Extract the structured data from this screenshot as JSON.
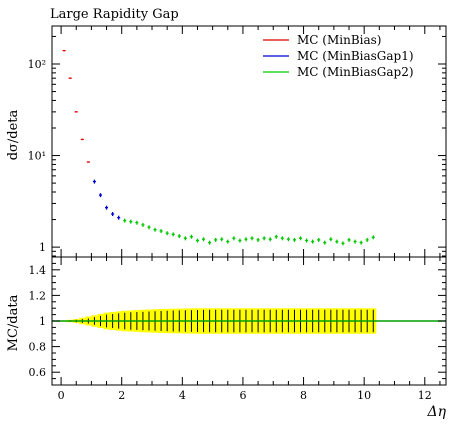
{
  "chart_data": {
    "type": "scatter",
    "title": "Large Rapidity Gap",
    "xlabel": "Δη",
    "xlim": [
      -0.3,
      12.7
    ],
    "xticks": [
      0,
      2,
      4,
      6,
      8,
      10,
      12
    ],
    "main_panel": {
      "ylabel": "dσ/deta",
      "yscale": "log",
      "ylim": [
        0.78,
        260
      ],
      "yticks": [
        {
          "value": 1,
          "label": "1"
        },
        {
          "value": 10,
          "label": "10¹"
        },
        {
          "value": 100,
          "label": "10²"
        }
      ],
      "grid": false
    },
    "ratio_panel": {
      "ylabel": "MC/data",
      "ylim": [
        0.5,
        1.5
      ],
      "yticks": [
        0.6,
        0.8,
        1,
        1.2,
        1.4
      ],
      "reference_line": 1,
      "band_color": "#ffff00"
    },
    "legend": {
      "placement": "top-right",
      "entries": [
        {
          "label": "MC (MinBias)",
          "color": "#e00000"
        },
        {
          "label": "MC (MinBiasGap1)",
          "color": "#0000d0"
        },
        {
          "label": "MC (MinBiasGap2)",
          "color": "#00c800"
        }
      ]
    },
    "bin_width": 0.2,
    "series": [
      {
        "name": "MC (MinBias)",
        "color": "#e00000",
        "x": [
          0.1,
          0.3,
          0.5,
          0.7,
          0.9
        ],
        "y": [
          140,
          70,
          30,
          15,
          8.5
        ]
      },
      {
        "name": "MC (MinBiasGap1)",
        "color": "#0000d0",
        "x": [
          1.1,
          1.3,
          1.5,
          1.7,
          1.9
        ],
        "y": [
          5.2,
          3.7,
          2.7,
          2.3,
          2.1
        ]
      },
      {
        "name": "MC (MinBiasGap2)",
        "color": "#00c800",
        "x": [
          2.1,
          2.3,
          2.5,
          2.7,
          2.9,
          3.1,
          3.3,
          3.5,
          3.7,
          3.9,
          4.1,
          4.3,
          4.5,
          4.7,
          4.9,
          5.1,
          5.3,
          5.5,
          5.7,
          5.9,
          6.1,
          6.3,
          6.5,
          6.7,
          6.9,
          7.1,
          7.3,
          7.5,
          7.7,
          7.9,
          8.1,
          8.3,
          8.5,
          8.7,
          8.9,
          9.1,
          9.3,
          9.5,
          9.7,
          9.9,
          10.1,
          10.3
        ],
        "y": [
          1.95,
          1.9,
          1.85,
          1.75,
          1.65,
          1.55,
          1.5,
          1.42,
          1.38,
          1.32,
          1.25,
          1.3,
          1.18,
          1.22,
          1.12,
          1.2,
          1.22,
          1.15,
          1.25,
          1.18,
          1.22,
          1.25,
          1.2,
          1.25,
          1.22,
          1.3,
          1.25,
          1.22,
          1.2,
          1.25,
          1.18,
          1.15,
          1.2,
          1.12,
          1.22,
          1.15,
          1.1,
          1.2,
          1.15,
          1.12,
          1.2,
          1.28
        ]
      }
    ],
    "data_points": {
      "color": "#000000",
      "x": [
        0.1,
        0.3,
        0.5,
        0.7,
        0.9,
        1.1,
        1.3,
        1.5,
        1.7,
        1.9,
        2.1,
        2.3,
        2.5,
        2.7,
        2.9,
        3.1,
        3.3,
        3.5,
        3.7,
        3.9,
        4.1,
        4.3,
        4.5,
        4.7,
        4.9,
        5.1,
        5.3,
        5.5,
        5.7,
        5.9,
        6.1,
        6.3,
        6.5,
        6.7,
        6.9,
        7.1,
        7.3,
        7.5,
        7.7,
        7.9,
        8.1,
        8.3,
        8.5,
        8.7,
        8.9,
        9.1,
        9.3,
        9.5,
        9.7,
        9.9,
        10.1,
        10.3
      ]
    },
    "ratio": {
      "x": [
        0.1,
        0.3,
        0.5,
        0.7,
        0.9,
        1.1,
        1.3,
        1.5,
        1.7,
        1.9,
        2.1,
        2.3,
        2.5,
        2.7,
        2.9,
        3.1,
        3.3,
        3.5,
        3.7,
        3.9,
        4.1,
        4.3,
        4.5,
        4.7,
        4.9,
        5.1,
        5.3,
        5.5,
        5.7,
        5.9,
        6.1,
        6.3,
        6.5,
        6.7,
        6.9,
        7.1,
        7.3,
        7.5,
        7.7,
        7.9,
        8.1,
        8.3,
        8.5,
        8.7,
        8.9,
        9.1,
        9.3,
        9.5,
        9.7,
        9.9,
        10.1,
        10.3
      ],
      "band_halfwidth": [
        0.005,
        0.01,
        0.015,
        0.025,
        0.035,
        0.045,
        0.055,
        0.065,
        0.07,
        0.075,
        0.08,
        0.082,
        0.085,
        0.088,
        0.09,
        0.092,
        0.094,
        0.095,
        0.096,
        0.097,
        0.098,
        0.099,
        0.1,
        0.1,
        0.1,
        0.1,
        0.1,
        0.1,
        0.1,
        0.1,
        0.1,
        0.1,
        0.1,
        0.1,
        0.1,
        0.1,
        0.1,
        0.1,
        0.1,
        0.1,
        0.1,
        0.1,
        0.1,
        0.1,
        0.1,
        0.1,
        0.1,
        0.1,
        0.1,
        0.1,
        0.1,
        0.1
      ],
      "data_err": [
        0.003,
        0.006,
        0.01,
        0.015,
        0.02,
        0.03,
        0.04,
        0.05,
        0.055,
        0.06,
        0.065,
        0.068,
        0.07,
        0.072,
        0.074,
        0.076,
        0.078,
        0.08,
        0.082,
        0.083,
        0.084,
        0.085,
        0.086,
        0.087,
        0.088,
        0.088,
        0.088,
        0.088,
        0.088,
        0.088,
        0.088,
        0.088,
        0.088,
        0.088,
        0.088,
        0.088,
        0.088,
        0.088,
        0.088,
        0.088,
        0.088,
        0.088,
        0.088,
        0.088,
        0.088,
        0.088,
        0.088,
        0.088,
        0.088,
        0.088,
        0.088,
        0.088
      ],
      "mc_color": "#00a000"
    }
  }
}
